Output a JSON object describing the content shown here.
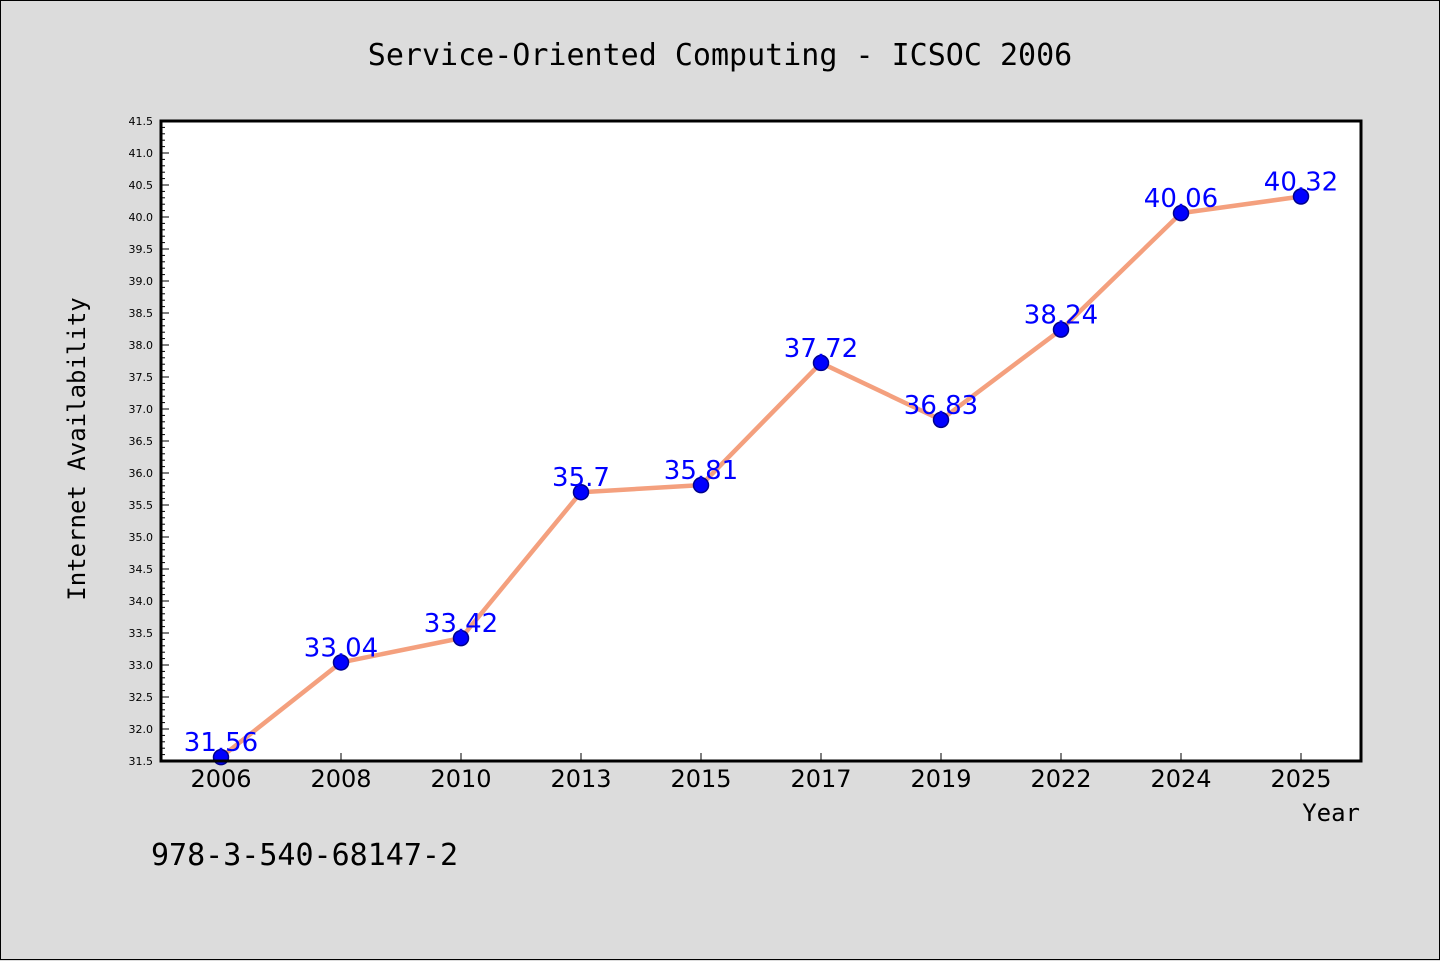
{
  "chart_data": {
    "type": "line",
    "title": "Service-Oriented Computing - ICSOC 2006",
    "xlabel": "Year",
    "ylabel": "Internet Availability",
    "categories": [
      "2006",
      "2008",
      "2010",
      "2013",
      "2015",
      "2017",
      "2019",
      "2022",
      "2024",
      "2025"
    ],
    "series": [
      {
        "values": [
          31.56,
          33.04,
          33.42,
          35.7,
          35.81,
          37.72,
          36.83,
          38.24,
          40.06,
          40.32
        ],
        "data_labels": [
          "31.56",
          "33.04",
          "33.42",
          "35.7",
          "35.81",
          "37.72",
          "36.83",
          "38.24",
          "40.06",
          "40.32"
        ]
      }
    ],
    "ylim": [
      31.5,
      41.5
    ],
    "yticks": [
      "31.5",
      "32.0",
      "32.5",
      "33.0",
      "33.5",
      "34.0",
      "34.5",
      "35.0",
      "35.5",
      "36.0",
      "36.5",
      "37.0",
      "37.5",
      "38.0",
      "38.5",
      "39.0",
      "39.5",
      "40.0",
      "40.5",
      "41.0",
      "41.5"
    ],
    "grid": false,
    "legend": "none",
    "colors": {
      "line": "#f4a07e",
      "marker": "#0000ff",
      "marker_edge": "#00008b",
      "data_label": "#0000ff",
      "background": "#dcdcdc",
      "plot_area": "#ffffff"
    }
  },
  "footnote": "978-3-540-68147-2"
}
